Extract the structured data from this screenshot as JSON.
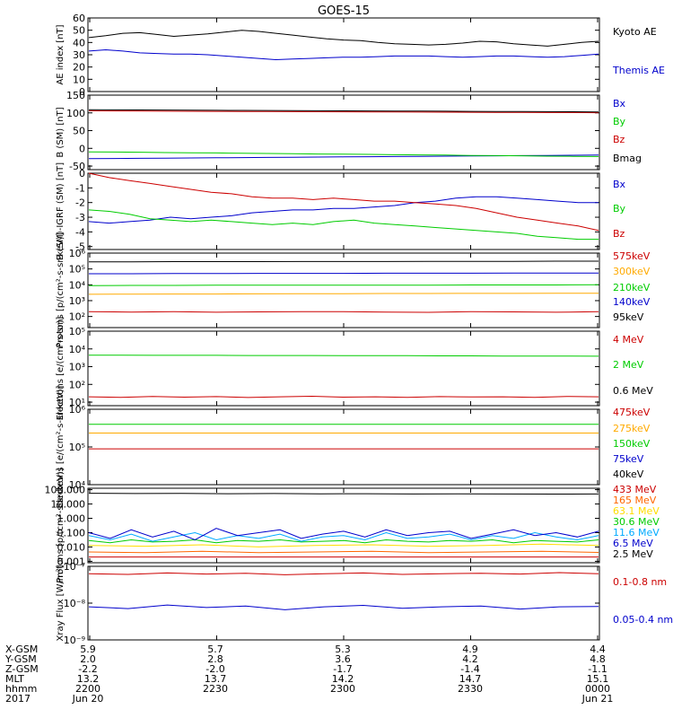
{
  "title": "GOES-15",
  "chart_data": [
    {
      "type": "line",
      "ylabel": "AE index [nT]",
      "ylim": [
        0,
        60
      ],
      "ticks": [
        {
          "v": 60,
          "t": "60"
        },
        {
          "v": 50,
          "t": "50"
        },
        {
          "v": 40,
          "t": "40"
        },
        {
          "v": 30,
          "t": "30"
        },
        {
          "v": 20,
          "t": "20"
        },
        {
          "v": 10,
          "t": "10"
        },
        {
          "v": 0,
          "t": "0"
        }
      ],
      "series": [
        {
          "name": "Kyoto AE",
          "color": "#000000",
          "values": [
            44.0,
            45.5,
            47.5,
            48.0,
            46.5,
            45.0,
            46.0,
            47.0,
            48.5,
            50.0,
            49.0,
            47.5,
            46.0,
            44.5,
            43.0,
            42.0,
            41.5,
            40.0,
            39.0,
            38.5,
            38.0,
            38.5,
            39.5,
            41.0,
            40.5,
            39.0,
            38.0,
            37.0,
            38.5,
            40.0,
            41.0
          ]
        },
        {
          "name": "Themis AE",
          "color": "#0000cc",
          "values": [
            33.0,
            34.0,
            33.0,
            31.5,
            31.0,
            30.5,
            30.5,
            30.0,
            29.0,
            28.0,
            27.0,
            26.0,
            26.5,
            27.0,
            27.5,
            28.0,
            28.0,
            28.5,
            29.0,
            29.0,
            29.0,
            28.5,
            28.0,
            28.5,
            29.0,
            29.0,
            28.5,
            28.0,
            28.5,
            29.5,
            30.5
          ]
        }
      ]
    },
    {
      "type": "line",
      "ylabel": "B (SM) [nT]",
      "ylim": [
        -60,
        150
      ],
      "ticks": [
        {
          "v": 150,
          "t": "150"
        },
        {
          "v": 100,
          "t": "100"
        },
        {
          "v": 50,
          "t": "50"
        },
        {
          "v": 0,
          "t": "0"
        },
        {
          "v": -50,
          "t": "-50"
        }
      ],
      "series": [
        {
          "name": "Bx",
          "color": "#0000cc",
          "values": [
            -29.0,
            -28.5,
            -28.0,
            -27.5,
            -27.0,
            -26.5,
            -26.0,
            -25.5,
            -25.0,
            -24.5,
            -24.0,
            -23.5,
            -23.0,
            -22.5,
            -22.0,
            -21.5,
            -21.0,
            -20.5,
            -20.0,
            -19.5,
            -19.0
          ]
        },
        {
          "name": "By",
          "color": "#00cc00",
          "values": [
            -10.0,
            -10.5,
            -11.0,
            -12.0,
            -12.5,
            -13.0,
            -14.0,
            -14.5,
            -15.0,
            -16.0,
            -16.5,
            -17.0,
            -18.0,
            -18.5,
            -19.0,
            -20.0,
            -20.5,
            -21.0,
            -22.0,
            -22.5,
            -23.0
          ]
        },
        {
          "name": "Bz",
          "color": "#cc0000",
          "values": [
            106.0,
            105.5,
            105.0,
            104.8,
            104.5,
            104.3,
            104.0,
            103.8,
            103.5,
            103.3,
            103.0,
            102.8,
            102.5,
            102.3,
            102.0,
            101.8,
            101.5,
            101.3,
            101.0,
            100.8,
            100.5
          ]
        },
        {
          "name": "Bmag",
          "color": "#000000",
          "values": [
            109.0,
            108.6,
            108.2,
            107.9,
            107.6,
            107.3,
            107.0,
            106.7,
            106.4,
            106.1,
            105.8,
            105.5,
            105.2,
            104.9,
            104.6,
            104.3,
            104.0,
            103.7,
            103.4,
            103.1,
            102.8
          ]
        }
      ]
    },
    {
      "type": "line",
      "ylabel": "B (SM)-IGRF (SM) [nT]",
      "ylim": [
        -5.2,
        0
      ],
      "ticks": [
        {
          "v": 0,
          "t": "0"
        },
        {
          "v": -1,
          "t": "-1"
        },
        {
          "v": -2,
          "t": "-2"
        },
        {
          "v": -3,
          "t": "-3"
        },
        {
          "v": -4,
          "t": "-4"
        },
        {
          "v": -5,
          "t": "-5"
        }
      ],
      "series": [
        {
          "name": "Bx",
          "color": "#0000cc",
          "values": [
            -3.3,
            -3.4,
            -3.3,
            -3.2,
            -3.0,
            -3.1,
            -3.0,
            -2.9,
            -2.7,
            -2.6,
            -2.5,
            -2.5,
            -2.4,
            -2.4,
            -2.3,
            -2.2,
            -2.0,
            -1.9,
            -1.7,
            -1.6,
            -1.6,
            -1.7,
            -1.8,
            -1.9,
            -2.0,
            -2.0
          ]
        },
        {
          "name": "By",
          "color": "#00cc00",
          "values": [
            -2.5,
            -2.6,
            -2.8,
            -3.1,
            -3.2,
            -3.3,
            -3.2,
            -3.3,
            -3.4,
            -3.5,
            -3.4,
            -3.5,
            -3.3,
            -3.2,
            -3.4,
            -3.5,
            -3.6,
            -3.7,
            -3.8,
            -3.9,
            -4.0,
            -4.1,
            -4.3,
            -4.4,
            -4.5,
            -4.5
          ]
        },
        {
          "name": "Bz",
          "color": "#cc0000",
          "values": [
            0.0,
            -0.3,
            -0.5,
            -0.7,
            -0.9,
            -1.1,
            -1.3,
            -1.4,
            -1.6,
            -1.7,
            -1.7,
            -1.8,
            -1.7,
            -1.8,
            -1.9,
            -1.9,
            -2.0,
            -2.1,
            -2.2,
            -2.4,
            -2.7,
            -3.0,
            -3.2,
            -3.4,
            -3.6,
            -3.9
          ]
        }
      ]
    },
    {
      "type": "line",
      "log": true,
      "ylabel": "Protons [p/(cm²-s-sr-keV)]",
      "ylim": [
        1.3,
        6.0
      ],
      "ticks": [
        {
          "v": 6,
          "t": "10⁶"
        },
        {
          "v": 5,
          "t": "10⁵"
        },
        {
          "v": 4,
          "t": "10⁴"
        },
        {
          "v": 3,
          "t": "10³"
        },
        {
          "v": 2,
          "t": "10²"
        }
      ],
      "series": [
        {
          "name": "575keV",
          "color": "#cc0000",
          "values": [
            2.3,
            2.28,
            2.3,
            2.27,
            2.29,
            2.31,
            2.3,
            2.28,
            2.26,
            2.3,
            2.29,
            2.27,
            2.3
          ]
        },
        {
          "name": "300keV",
          "color": "#ffaa00",
          "values": [
            3.4,
            3.41,
            3.42,
            3.42,
            3.43,
            3.44,
            3.44,
            3.45,
            3.45,
            3.46,
            3.46,
            3.47,
            3.47
          ]
        },
        {
          "name": "210keV",
          "color": "#00cc00",
          "values": [
            3.95,
            3.96,
            3.96,
            3.97,
            3.97,
            3.97,
            3.98,
            3.98,
            3.98,
            3.99,
            3.99,
            3.99,
            4.0
          ]
        },
        {
          "name": "140keV",
          "color": "#0000cc",
          "values": [
            4.7,
            4.7,
            4.71,
            4.71,
            4.72,
            4.72,
            4.72,
            4.73,
            4.73,
            4.73,
            4.74,
            4.74,
            4.74
          ]
        },
        {
          "name": "95keV",
          "color": "#000000",
          "values": [
            5.45,
            5.45,
            5.46,
            5.46,
            5.46,
            5.47,
            5.47,
            5.47,
            5.48,
            5.48,
            5.48,
            5.49,
            5.49
          ]
        }
      ]
    },
    {
      "type": "line",
      "log": true,
      "ylabel": "Electrons [e/(cm²-s-sr)]",
      "ylim": [
        0.8,
        5.0
      ],
      "ticks": [
        {
          "v": 5,
          "t": "10⁵"
        },
        {
          "v": 4,
          "t": "10⁴"
        },
        {
          "v": 3,
          "t": "10³"
        },
        {
          "v": 2,
          "t": "10²"
        },
        {
          "v": 1,
          "t": "10¹"
        }
      ],
      "series": [
        {
          "name": "4 MeV",
          "color": "#cc0000",
          "values": [
            1.3,
            1.27,
            1.32,
            1.28,
            1.31,
            1.26,
            1.3,
            1.33,
            1.28,
            1.3,
            1.27,
            1.31,
            1.29,
            1.3,
            1.27,
            1.32,
            1.3
          ]
        },
        {
          "name": "2 MeV",
          "color": "#00cc00",
          "values": [
            3.65,
            3.65,
            3.64,
            3.64,
            3.64,
            3.63,
            3.63,
            3.63,
            3.62,
            3.62,
            3.62,
            3.61,
            3.61,
            3.6,
            3.6,
            3.6,
            3.59
          ]
        },
        {
          "name": "0.6 MeV",
          "color": "#000000",
          "values": [
            5.0,
            5.0,
            5.0,
            5.0,
            5.0,
            5.0,
            5.0,
            5.0,
            5.0,
            5.0,
            5.0,
            5.0,
            5.0,
            5.0,
            5.0,
            5.0,
            5.0
          ]
        }
      ]
    },
    {
      "type": "line",
      "log": true,
      "ylabel": "Electrons [e/(cm²-s-sr-keV)]",
      "ylim": [
        4.0,
        6.0
      ],
      "ticks": [
        {
          "v": 6,
          "t": "10⁶"
        },
        {
          "v": 5,
          "t": "10⁵"
        },
        {
          "v": 4,
          "t": "10⁴"
        }
      ],
      "series": [
        {
          "name": "475keV",
          "color": "#cc0000",
          "values": [
            4.95,
            4.95,
            4.95,
            4.95,
            4.95,
            4.95,
            4.95,
            4.95,
            4.95,
            4.95
          ]
        },
        {
          "name": "275keV",
          "color": "#ffaa00",
          "values": [
            5.37,
            5.37,
            5.37,
            5.37,
            5.37,
            5.37,
            5.37,
            5.37,
            5.37,
            5.37
          ]
        },
        {
          "name": "150keV",
          "color": "#00cc00",
          "values": [
            5.6,
            5.6,
            5.6,
            5.6,
            5.6,
            5.6,
            5.6,
            5.6,
            5.6,
            5.6
          ]
        },
        {
          "name": "75keV",
          "color": "#0000cc",
          "values": [
            6.2,
            6.2,
            6.2,
            6.2,
            6.2,
            6.2,
            6.2,
            6.2,
            6.2,
            6.2
          ]
        },
        {
          "name": "40keV",
          "color": "#000000",
          "values": [
            6.5,
            6.5,
            6.5,
            6.5,
            6.5,
            6.5,
            6.5,
            6.5,
            6.5,
            6.5
          ]
        }
      ]
    },
    {
      "type": "line",
      "log": true,
      "ylabel": "Protons [p/(cm²-s-sr-keV)]",
      "ylim": [
        -3.1,
        2.1
      ],
      "ticks": [
        {
          "v": 2,
          "t": "100.000"
        },
        {
          "v": 1,
          "t": "10.000"
        },
        {
          "v": 0,
          "t": "1.000"
        },
        {
          "v": -1,
          "t": "0.100"
        },
        {
          "v": -2,
          "t": "0.010"
        },
        {
          "v": -3,
          "t": "0.001"
        }
      ],
      "series": [
        {
          "name": "433 MeV",
          "color": "#cc0000",
          "values": [
            -2.7,
            -2.7,
            -2.7,
            -2.7,
            -2.7,
            -2.7,
            -2.7,
            -2.7,
            -2.7,
            -2.7
          ]
        },
        {
          "name": "165 MeV",
          "color": "#ff6600",
          "values": [
            -2.35,
            -2.4,
            -2.3,
            -2.4,
            -2.35,
            -2.3,
            -2.4,
            -2.35,
            -2.3,
            -2.38
          ]
        },
        {
          "name": "63.1 MeV",
          "color": "#ffdd00",
          "values": [
            -1.9,
            -1.95,
            -1.85,
            -2.0,
            -1.9,
            -1.85,
            -1.95,
            -1.9,
            -1.8,
            -1.9
          ]
        },
        {
          "name": "30.6 MeV",
          "color": "#00cc00",
          "values": [
            -1.55,
            -1.7,
            -1.5,
            -1.65,
            -1.6,
            -1.5,
            -1.7,
            -1.55,
            -1.6,
            -1.5,
            -1.65,
            -1.6,
            -1.55,
            -1.7,
            -1.5,
            -1.6,
            -1.65,
            -1.55,
            -1.6,
            -1.5,
            -1.7,
            -1.55,
            -1.6,
            -1.65,
            -1.5
          ]
        },
        {
          "name": "11.6 MeV",
          "color": "#00aaff",
          "values": [
            -1.2,
            -1.5,
            -1.1,
            -1.6,
            -1.3,
            -1.0,
            -1.5,
            -1.2,
            -1.4,
            -1.1,
            -1.6,
            -1.3,
            -1.2,
            -1.5,
            -1.0,
            -1.4,
            -1.3,
            -1.1,
            -1.5,
            -1.2,
            -1.4,
            -1.0,
            -1.3,
            -1.5,
            -1.2
          ]
        },
        {
          "name": "6.5 MeV",
          "color": "#0000cc",
          "values": [
            -1.0,
            -1.4,
            -0.8,
            -1.3,
            -0.9,
            -1.5,
            -0.7,
            -1.2,
            -1.0,
            -0.8,
            -1.4,
            -1.1,
            -0.9,
            -1.3,
            -0.8,
            -1.2,
            -1.0,
            -0.9,
            -1.4,
            -1.1,
            -0.8,
            -1.2,
            -1.0,
            -1.3,
            -0.9
          ]
        },
        {
          "name": "2.5 MeV",
          "color": "#000000",
          "values": [
            1.75,
            1.73,
            1.74,
            1.72,
            1.73,
            1.71,
            1.72,
            1.7,
            1.71,
            1.7,
            1.69,
            1.7
          ]
        }
      ]
    },
    {
      "type": "line",
      "log": true,
      "ylabel": "Xray Flux [W/m²]",
      "ylim": [
        -9.0,
        -7.0
      ],
      "ticks": [
        {
          "v": -7,
          "t": "10⁻⁷"
        },
        {
          "v": -8,
          "t": "10⁻⁸"
        },
        {
          "v": -9,
          "t": "10⁻⁹"
        }
      ],
      "series": [
        {
          "name": "0.1-0.8 nm",
          "color": "#cc0000",
          "values": [
            -7.2,
            -7.22,
            -7.18,
            -7.21,
            -7.19,
            -7.23,
            -7.2,
            -7.18,
            -7.22,
            -7.2,
            -7.19,
            -7.21,
            -7.17,
            -7.2
          ]
        },
        {
          "name": "0.05-0.4 nm",
          "color": "#0000cc",
          "values": [
            -8.1,
            -8.15,
            -8.05,
            -8.12,
            -8.08,
            -8.18,
            -8.1,
            -8.06,
            -8.14,
            -8.1,
            -8.08,
            -8.16,
            -8.1,
            -8.09
          ]
        }
      ]
    }
  ],
  "x_axis": {
    "row_labels": [
      "X-GSM",
      "Y-GSM",
      "Z-GSM",
      "MLT",
      "hhmm",
      "2017"
    ],
    "columns": [
      [
        "5.9",
        "2.0",
        "-2.2",
        "13.2",
        "2200",
        "Jun 20"
      ],
      [
        "5.7",
        "2.8",
        "-2.0",
        "13.7",
        "2230",
        ""
      ],
      [
        "5.3",
        "3.6",
        "-1.7",
        "14.2",
        "2300",
        ""
      ],
      [
        "4.9",
        "4.2",
        "-1.4",
        "14.7",
        "2330",
        ""
      ],
      [
        "4.4",
        "4.8",
        "-1.1",
        "15.1",
        "0000",
        "Jun 21"
      ]
    ]
  }
}
